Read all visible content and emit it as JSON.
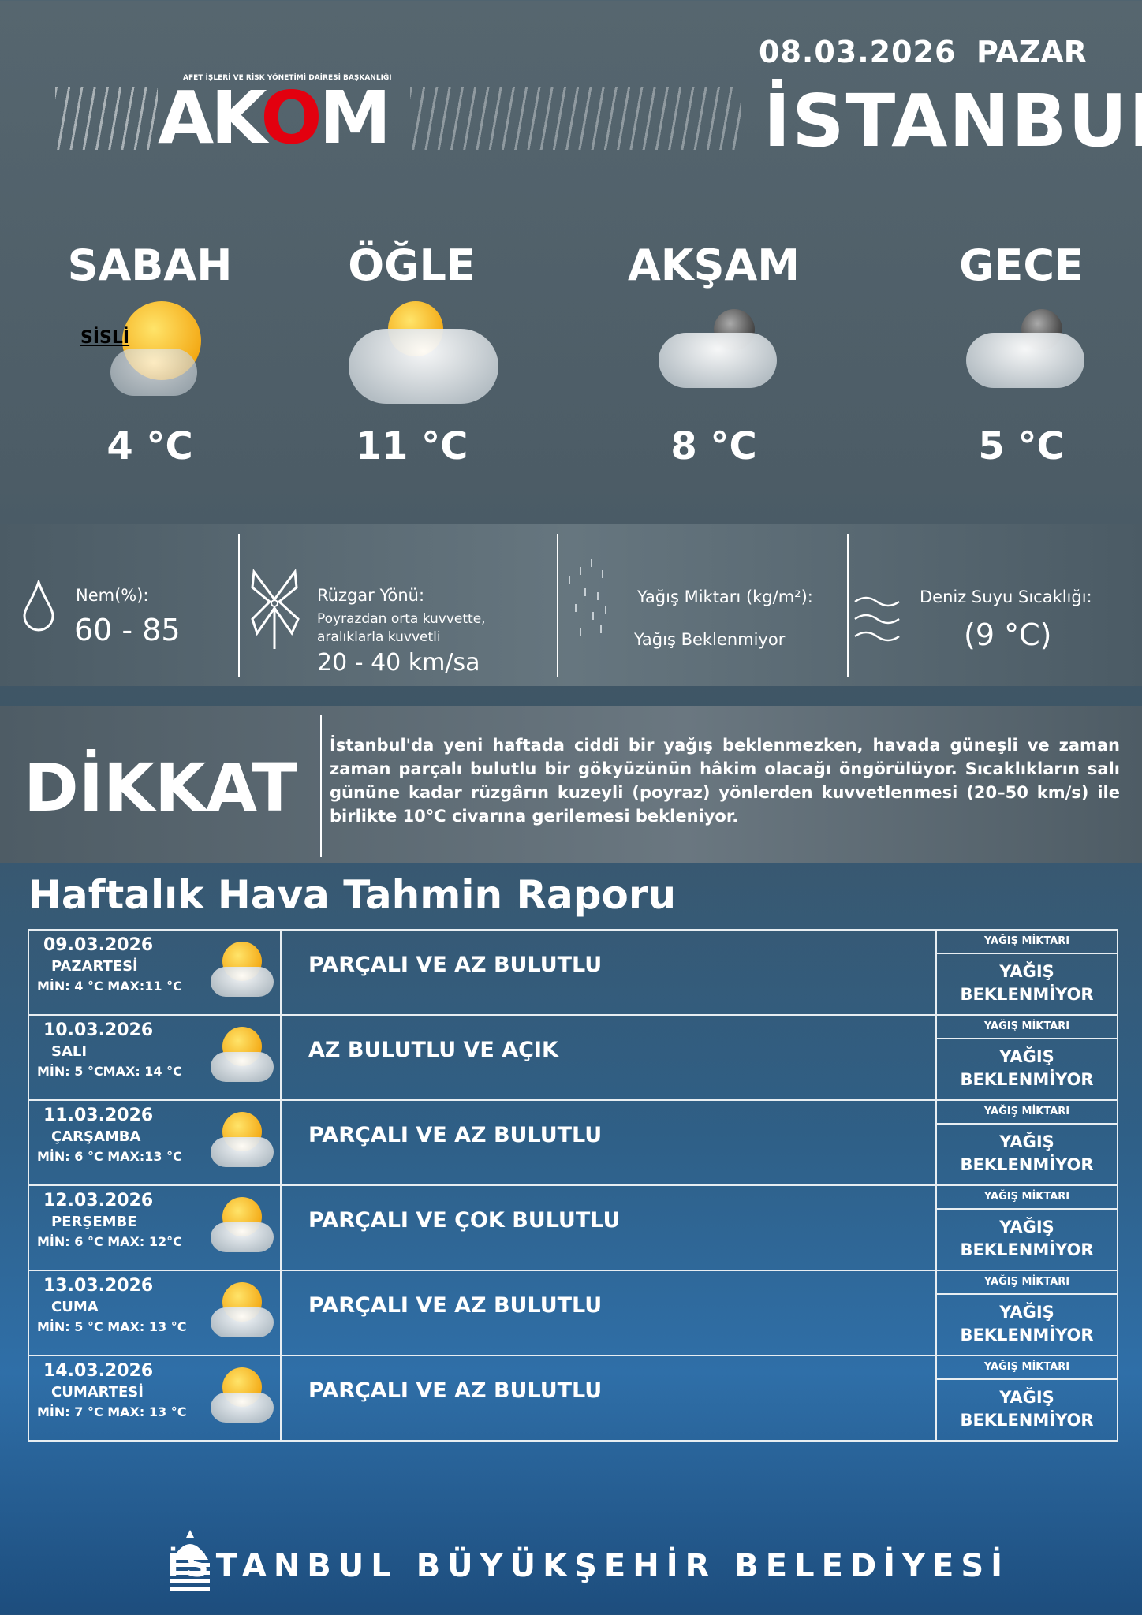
{
  "header": {
    "date": "08.03.2026",
    "day": "PAZAR",
    "city": "İSTANBUL",
    "logo_subtitle": "AFET İŞLERİ VE RİSK YÖNETİMİ DAİRESİ BAŞKANLIĞI",
    "logo": "AKOM"
  },
  "periods": [
    {
      "name": "SABAH",
      "temp": "4 °C",
      "icon": "sun-fog-icon",
      "note": "SİSLİ"
    },
    {
      "name": "ÖĞLE",
      "temp": "11 °C",
      "icon": "sun-cloud-icon"
    },
    {
      "name": "AKŞAM",
      "temp": "8 °C",
      "icon": "moon-cloud-icon"
    },
    {
      "name": "GECE",
      "temp": "5 °C",
      "icon": "moon-cloud-icon"
    }
  ],
  "info": {
    "humidity": {
      "label": "Nem(%):",
      "value": "60 - 85"
    },
    "wind": {
      "label": "Rüzgar Yönü:",
      "desc1": "Poyrazdan orta kuvvette,",
      "desc2": "aralıklarla kuvvetli",
      "value": "20 - 40 km/sa"
    },
    "rain": {
      "label": "Yağış Miktarı (kg/m²):",
      "value": "Yağış Beklenmiyor"
    },
    "sea": {
      "label": "Deniz Suyu Sıcaklığı:",
      "value": "(9 °C)"
    }
  },
  "warning": {
    "title": "DİKKAT",
    "text": "İstanbul'da yeni haftada ciddi bir yağış beklenmezken, havada güneşli ve zaman zaman parçalı bulutlu bir gökyüzünün hâkim olacağı öngörülüyor. Sıcaklıkların salı gününe kadar rüzgârın kuzeyli (poyraz) yönlerden kuvvetlenmesi (20–50 km/s) ile birlikte 10°C civarına gerilemesi bekleniyor."
  },
  "weekly": {
    "title": "Haftalık Hava Tahmin Raporu",
    "rain_header": "YAĞIŞ MİKTARI",
    "days": [
      {
        "date": "09.03.2026",
        "day": "PAZARTESİ",
        "minmax": "MİN: 4 °C MAX:11  °C",
        "desc": "PARÇALI VE AZ BULUTLU",
        "rain1": "YAĞIŞ",
        "rain2": "BEKLENMİYOR"
      },
      {
        "date": "10.03.2026",
        "day": "SALI",
        "minmax": "MİN: 5  °CMAX: 14 °C",
        "desc": "AZ BULUTLU VE AÇIK",
        "rain1": "YAĞIŞ",
        "rain2": "BEKLENMİYOR"
      },
      {
        "date": "11.03.2026",
        "day": "ÇARŞAMBA",
        "minmax": "MİN: 6 °C MAX:13 °C",
        "desc": "PARÇALI VE AZ BULUTLU",
        "rain1": "YAĞIŞ",
        "rain2": "BEKLENMİYOR"
      },
      {
        "date": "12.03.2026",
        "day": "PERŞEMBE",
        "minmax": "MİN: 6 °C MAX: 12°C",
        "desc": "PARÇALI VE ÇOK BULUTLU",
        "rain1": "YAĞIŞ",
        "rain2": "BEKLENMİYOR"
      },
      {
        "date": "13.03.2026",
        "day": "CUMA",
        "minmax": "MİN: 5 °C MAX: 13 °C",
        "desc": "PARÇALI VE AZ BULUTLU",
        "rain1": "YAĞIŞ",
        "rain2": "BEKLENMİYOR"
      },
      {
        "date": "14.03.2026",
        "day": "CUMARTESİ",
        "minmax": "MİN: 7 °C MAX: 13 °C",
        "desc": "PARÇALI VE AZ BULUTLU",
        "rain1": "YAĞIŞ",
        "rain2": "BEKLENMİYOR"
      }
    ]
  },
  "footer": {
    "text": "İSTANBUL BÜYÜKŞEHİR BELEDİYESİ"
  },
  "colors": {
    "logo_accent": "#e3000f"
  }
}
